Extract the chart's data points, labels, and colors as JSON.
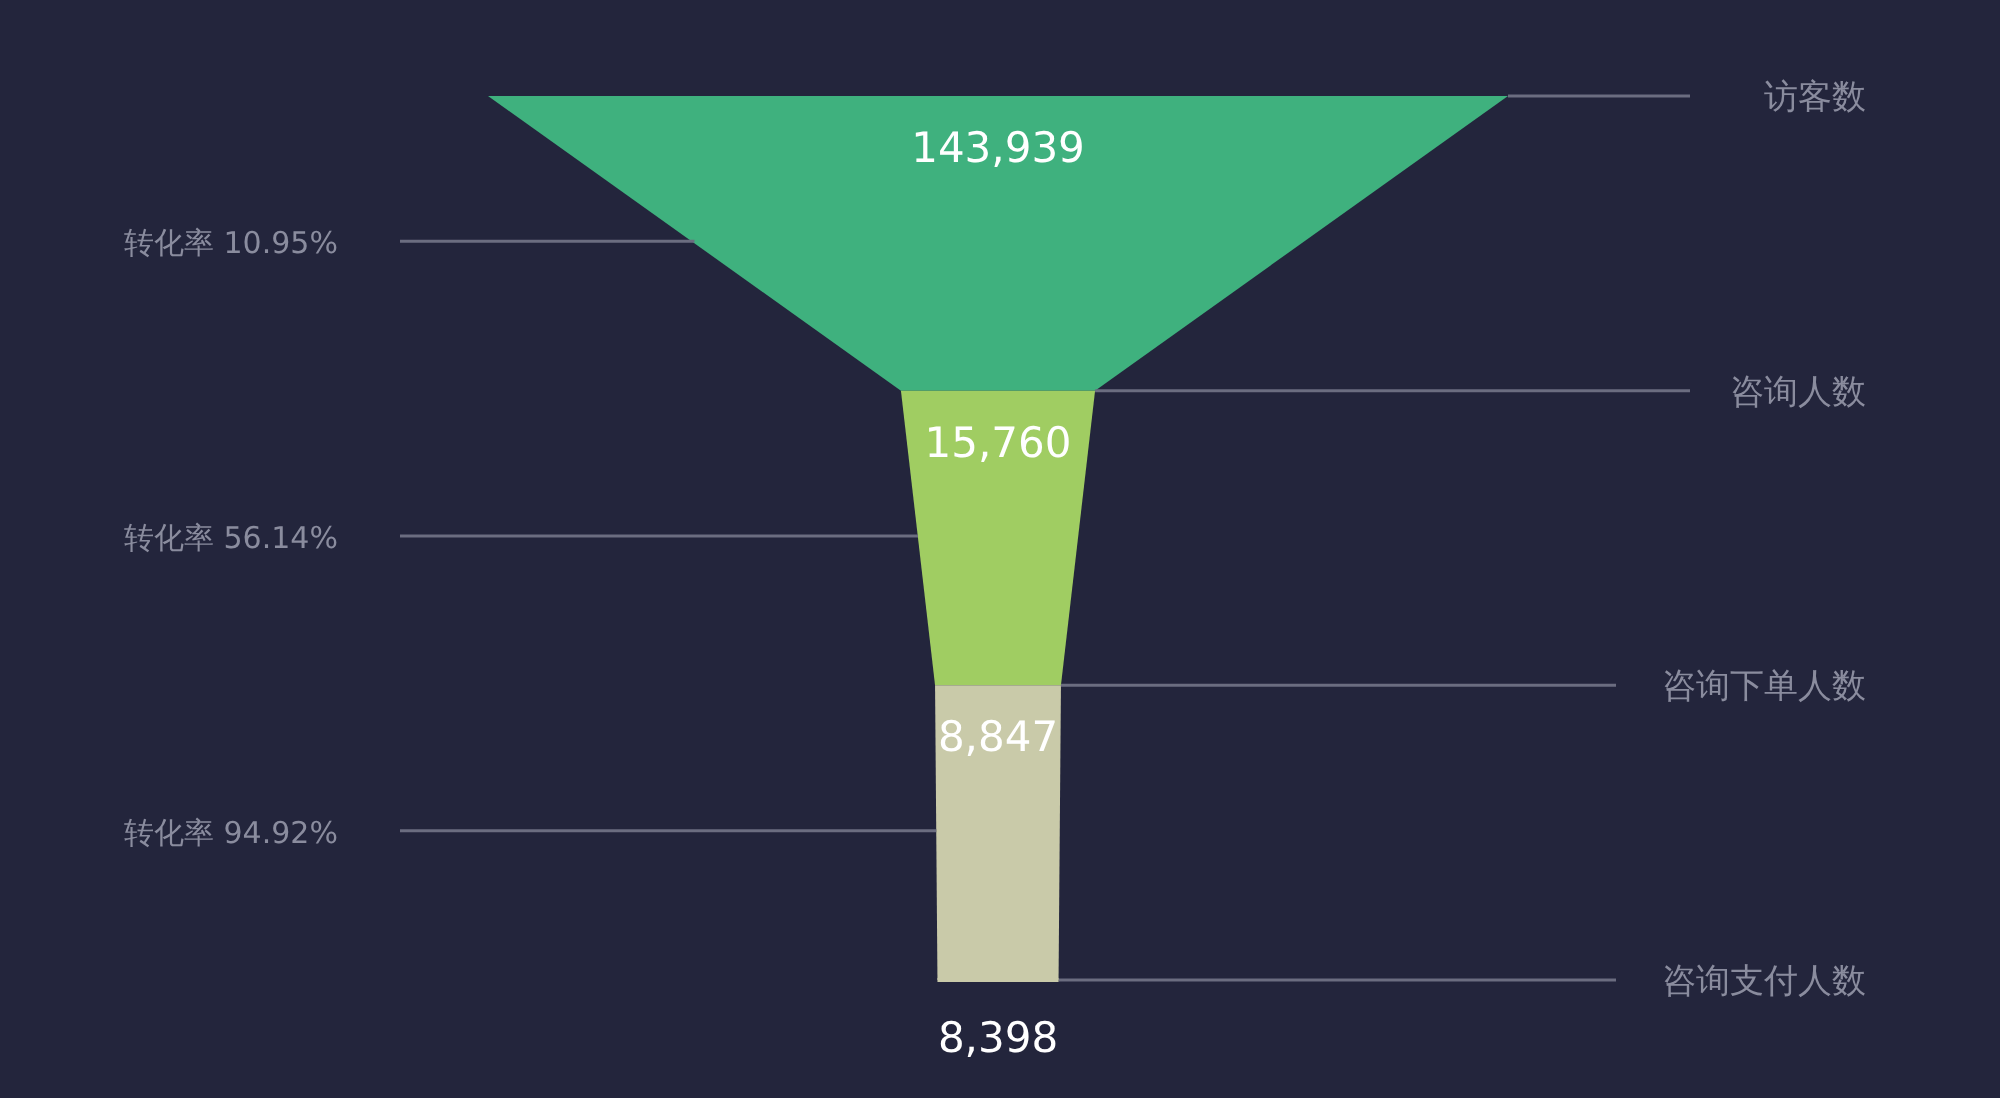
{
  "chart_data": {
    "type": "other",
    "categories": [
      "访客数",
      "咨询人数",
      "咨询下单人数",
      "咨询支付人数"
    ],
    "values": [
      143939,
      15760,
      8847,
      8398
    ],
    "value_labels": [
      "143,939",
      "15,760",
      "8,847",
      "8,398"
    ],
    "colors": [
      "#3fb17e",
      "#a0cd62",
      "#c9caa9",
      "#c9caa9"
    ],
    "annotations": [
      "转化率 10.95%",
      "转化率 56.14%",
      "转化率 94.92%"
    ]
  }
}
